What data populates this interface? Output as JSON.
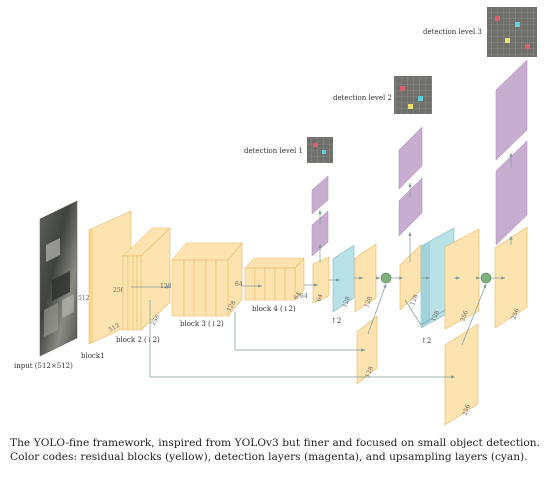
{
  "labels": {
    "input": "input (512×512)",
    "block1": "block1",
    "block2": "block 2 (↓2)",
    "block3": "block 3 (↓2)",
    "block4": "block 4 (↓2)",
    "up1": "↑2",
    "up2": "↑2",
    "det1": "detection level 1",
    "det2": "detection level 2",
    "det3": "detection level 3"
  },
  "dims": {
    "input_side": "512",
    "b1_front": "256",
    "b1_bottom": "512",
    "b2_res": "128",
    "b2_bottom": "256",
    "b3_res": "64",
    "b3_bottom": "128",
    "b4_res": "64",
    "b4_bottom": "64",
    "c1": "64",
    "c2": "128",
    "c3": "128",
    "c4": "128",
    "c5": "128",
    "c6": "256",
    "c7": "256",
    "c8": "256",
    "skip1": "128",
    "skip2": "256",
    "out1": "128",
    "out2": "256"
  },
  "caption": "The YOLO-fine framework, inspired from YOLOv3 but finer and focused on small object detection. Color codes: residual blocks (yellow), detection layers (magenta), and upsampling layers (cyan).",
  "colors": {
    "yellow": "#fde3b0",
    "yellow_edge": "#e8b862",
    "magenta": "#c7aed0",
    "magenta_edge": "#a988b4",
    "cyan": "#b9e2e8",
    "cyan_edge": "#7fbcc4",
    "arrow": "#7c9a96",
    "node": "#7fb07f"
  }
}
